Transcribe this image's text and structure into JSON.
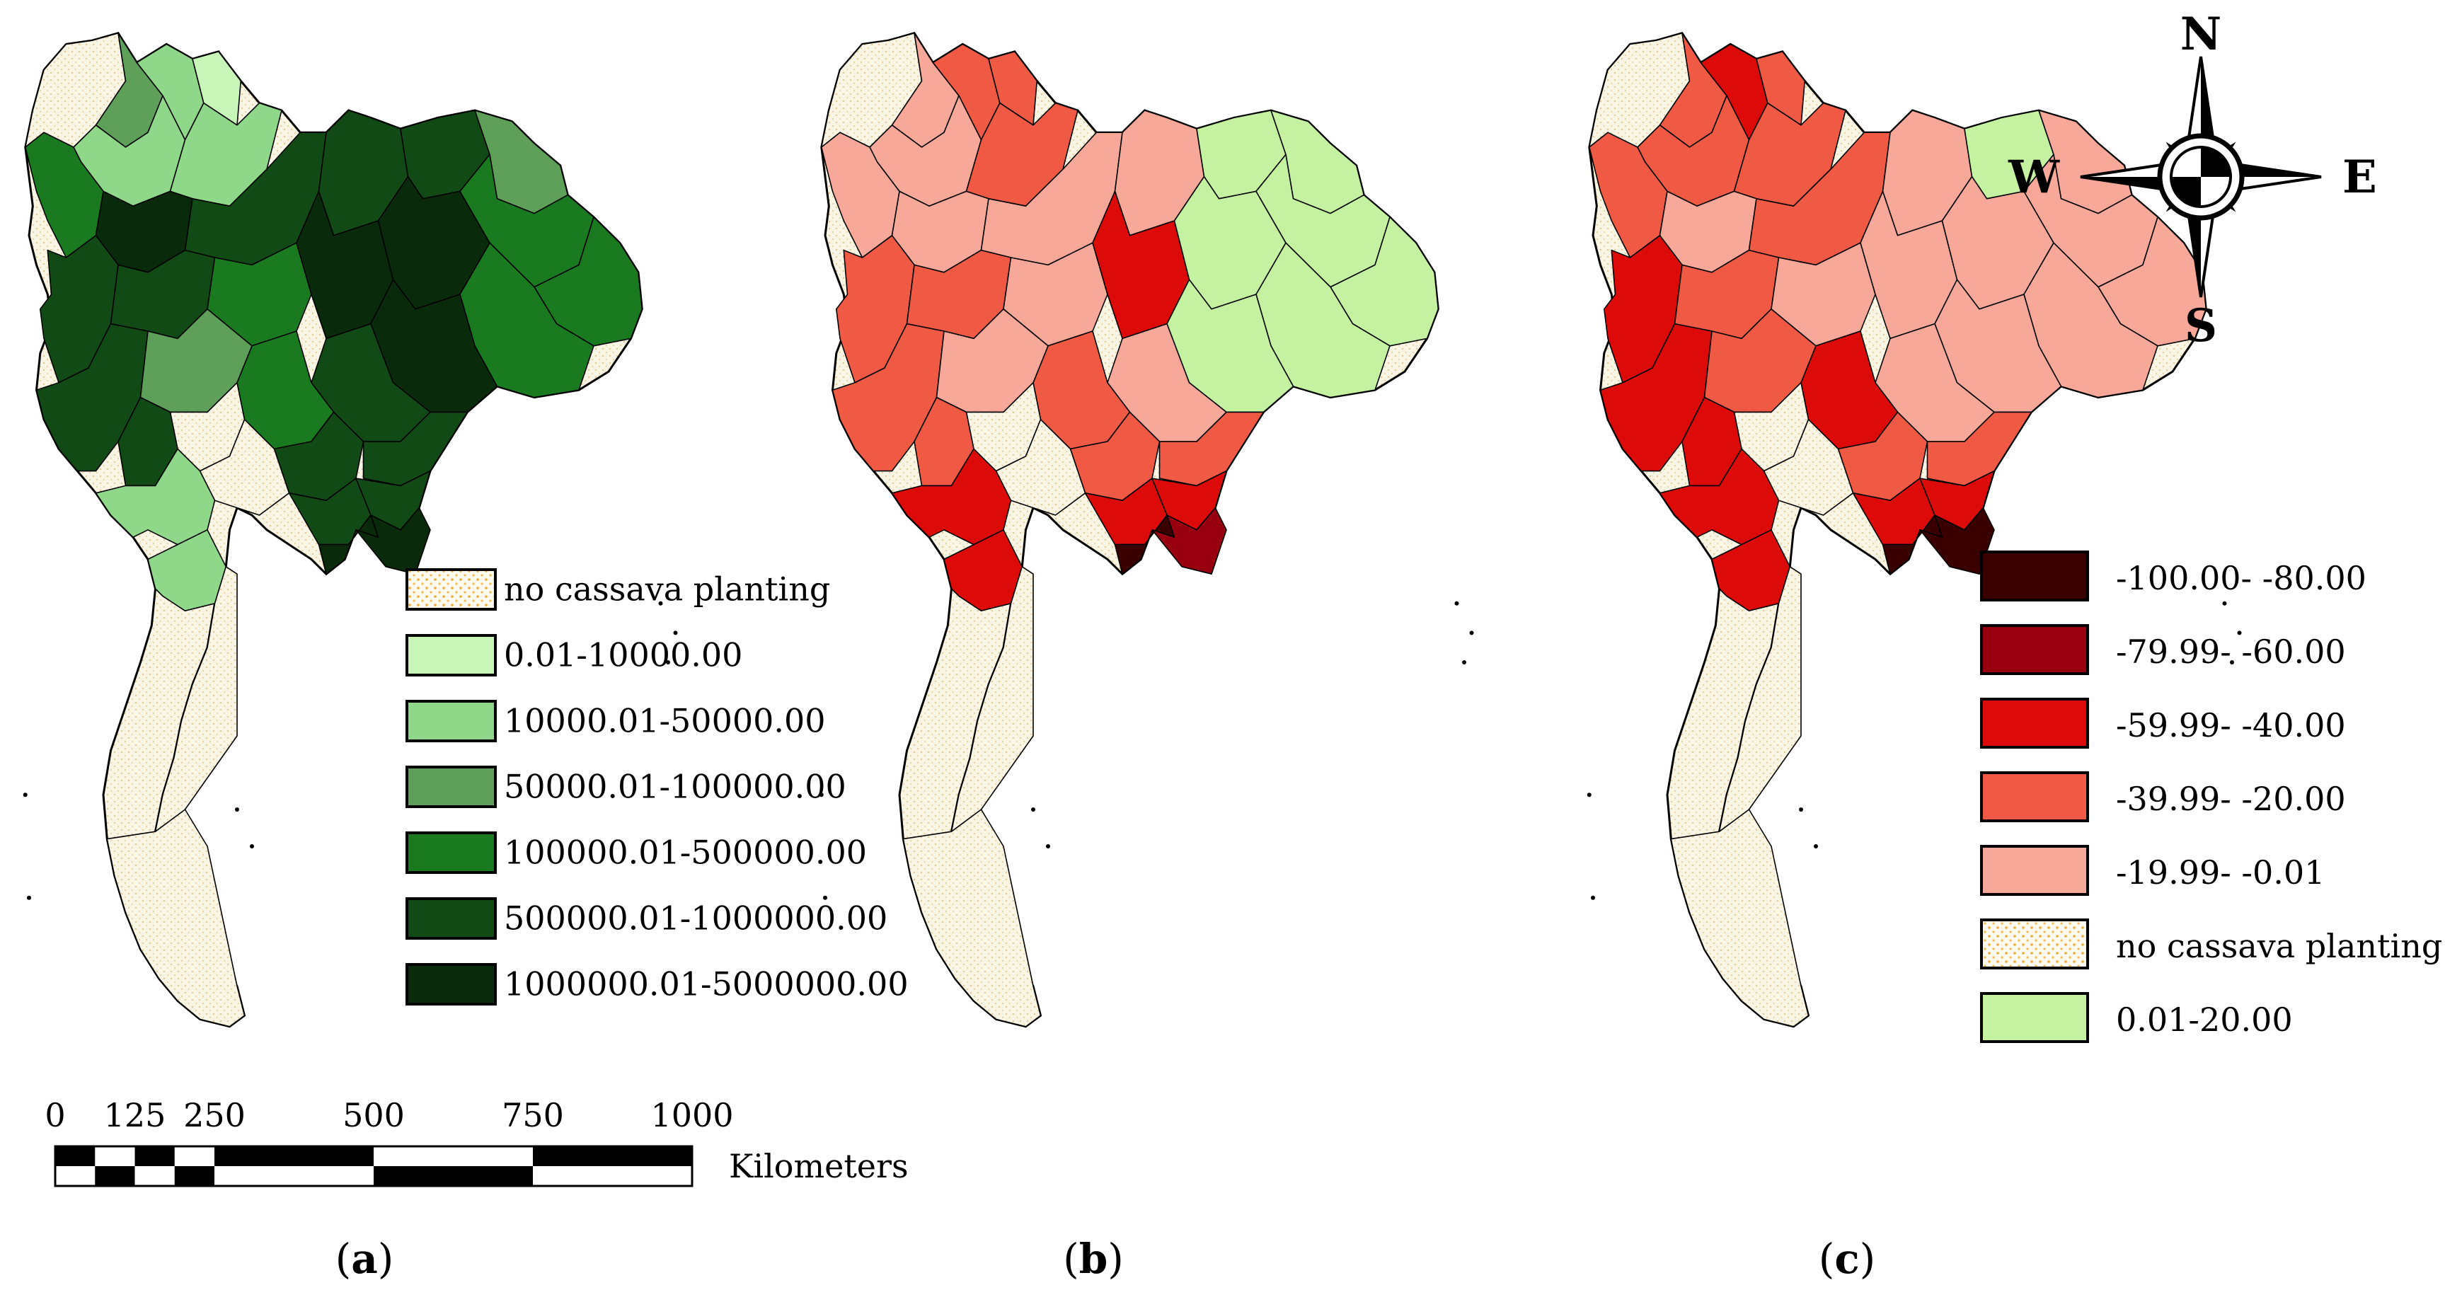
{
  "colors": {
    "no_planting": "#f8f5e4",
    "no_planting_dots": "#f0a830",
    "green_scale": [
      "#c8f5b8",
      "#8fd88a",
      "#5ea05a",
      "#1a7a20",
      "#124a16",
      "#0a2a0c"
    ],
    "red_scale": [
      "#3a0000",
      "#980010",
      "#dd0a0a",
      "#f05a44",
      "#f8a898"
    ],
    "light_green": "#c4f2a0",
    "outline": "#000000"
  },
  "panel_a": {
    "caption_letter": "a",
    "legend": [
      {
        "label": "no cassava planting",
        "swatch": "no_planting"
      },
      {
        "label": "0.01-10000.00",
        "swatch": "green_0"
      },
      {
        "label": "10000.01-50000.00",
        "swatch": "green_1"
      },
      {
        "label": "50000.01-100000.00",
        "swatch": "green_2"
      },
      {
        "label": "100000.01-500000.00",
        "swatch": "green_3"
      },
      {
        "label": "500000.01-1000000.00",
        "swatch": "green_4"
      },
      {
        "label": "1000000.01-5000000.00",
        "swatch": "green_5"
      }
    ]
  },
  "panel_b": {
    "caption_letter": "b"
  },
  "panel_c": {
    "caption_letter": "c",
    "legend": [
      {
        "label": "-100.00- -80.00",
        "swatch": "red_0"
      },
      {
        "label": "-79.99- -60.00",
        "swatch": "red_1"
      },
      {
        "label": "-59.99- -40.00",
        "swatch": "red_2"
      },
      {
        "label": "-39.99- -20.00",
        "swatch": "red_3"
      },
      {
        "label": "-19.99- -0.01",
        "swatch": "red_4"
      },
      {
        "label": "no cassava planting",
        "swatch": "no_planting"
      },
      {
        "label": "0.01-20.00",
        "swatch": "light_green"
      }
    ]
  },
  "scale_bar": {
    "ticks": [
      "0",
      "125",
      "250",
      "500",
      "750",
      "1000"
    ],
    "unit": "Kilometers"
  },
  "compass": {
    "north": "N",
    "south": "S",
    "east": "E",
    "west": "W"
  }
}
